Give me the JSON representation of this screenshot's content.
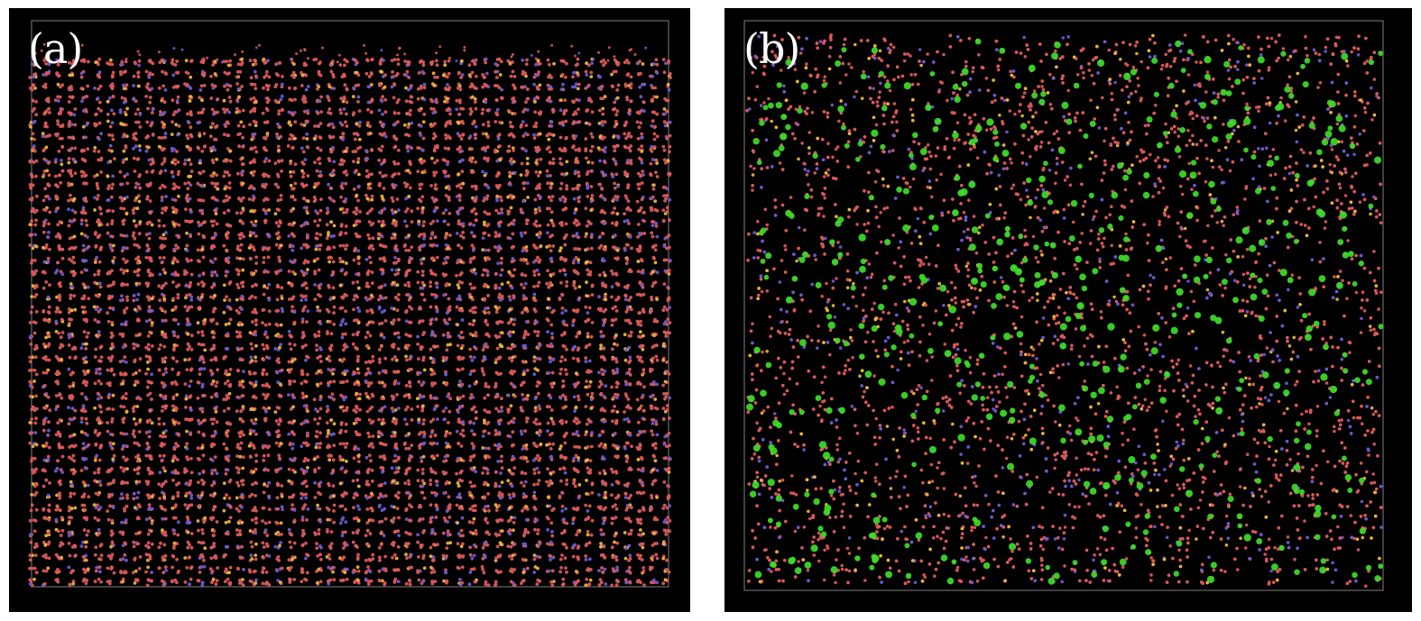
{
  "figure": {
    "panels": [
      {
        "id": "a",
        "label": "(a)",
        "description_colors": {
          "background": "#000000",
          "box_outline": "#808080",
          "atom_primary": "#d9585a",
          "atom_secondary": "#6a5acd",
          "atom_tertiary": "#e8b33a"
        }
      },
      {
        "id": "b",
        "label": "(b)",
        "description_colors": {
          "background": "#000000",
          "box_outline": "#808080",
          "atom_primary": "#d9585a",
          "atom_secondary": "#6a5acd",
          "atom_tertiary": "#e8b33a",
          "atom_large": "#3fdc2a"
        }
      }
    ]
  }
}
